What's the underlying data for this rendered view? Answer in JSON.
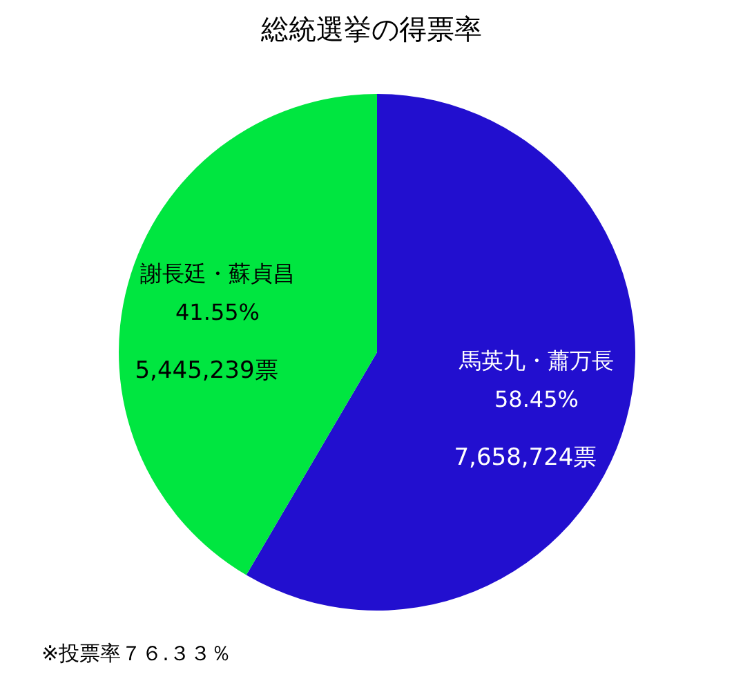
{
  "chart_data": {
    "type": "pie",
    "title": "総統選挙の得票率",
    "categories": [
      "馬英九・蕭万長",
      "謝長廷・蘇貞昌"
    ],
    "values": [
      58.45,
      41.55
    ],
    "colors": [
      "#220fcf",
      "#00e640"
    ],
    "value_labels": [
      "58.45%",
      "41.55%"
    ],
    "annotations": [
      {
        "text": "7,658,724票",
        "x": "馬英九・蕭万長"
      },
      {
        "text": "5,445,239票",
        "x": "謝長廷・蘇貞昌"
      },
      "※投票率７６.３３％"
    ]
  }
}
